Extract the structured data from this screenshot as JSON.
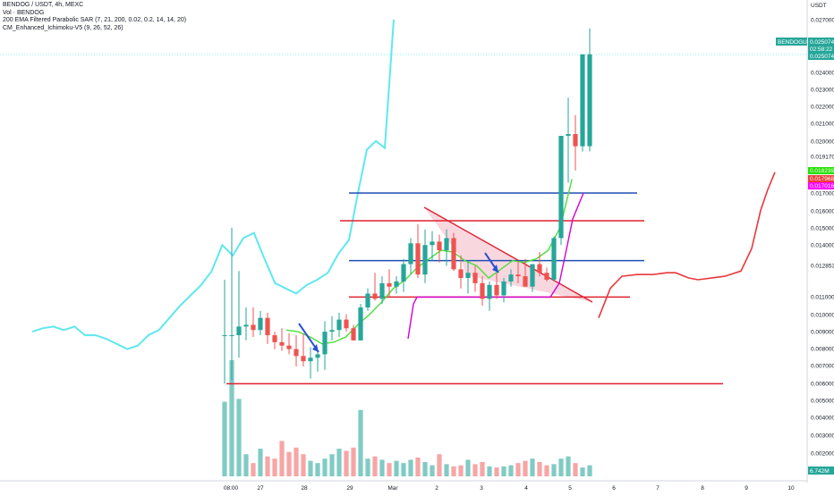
{
  "legend": {
    "title": "BENDOG / USDT, 4h, MEXC",
    "vol": "Vol · BENDOG",
    "sar": "200 EMA Filtered Parabolic SAR (7, 21, 200, 0.02, 0.2, 14, 14, 20)",
    "ichimoku": "CM_Enhanced_Ichimoku-V5 (9, 26, 52, 26)"
  },
  "axis": {
    "currency": "USDT",
    "price_ticks": [
      "0.027000",
      "0.024000",
      "0.023000",
      "0.022000",
      "0.021000",
      "0.020000",
      "0.019170",
      "0.017000",
      "0.016000",
      "0.015000",
      "0.014000",
      "0.012853",
      "0.011000",
      "0.010000",
      "0.009000",
      "0.008000",
      "0.007000",
      "0.006000",
      "0.005000",
      "0.004000",
      "0.003000",
      "0.002000"
    ],
    "time_ticks": [
      "08:00",
      "27",
      "28",
      "29",
      "Mar",
      "2",
      "3",
      "4",
      "5",
      "6",
      "7",
      "8",
      "9",
      "10"
    ]
  },
  "price_tags": {
    "symbol": "BENDOGUSDT",
    "last_price": "0.025074",
    "countdown": "02:58:22",
    "last_price_2": "0.025074",
    "green_tag": "0.018239",
    "red_tag": "0.017968",
    "magenta_tag": "0.017016",
    "volume_tag": "6.742M"
  },
  "colors": {
    "bull": "#26a69a",
    "bear": "#ef5350",
    "vol_bull": "#80cbc4",
    "vol_bear": "#f7a5a5",
    "cyan": "#5ee8ee",
    "green": "#4cdd3a",
    "magenta": "#d400d4",
    "red_line": "#e0202e",
    "blue_line": "#1f4fb3",
    "arrow": "#2a52d4",
    "triangle_fill": "#f5c6d2"
  },
  "chart_data": {
    "type": "candlestick",
    "timeframe": "4h",
    "ylim": [
      0.002,
      0.027
    ],
    "candles_ohlc": [
      [
        0.0088,
        0.012,
        0.006,
        0.0088
      ],
      [
        0.0088,
        0.015,
        0.0062,
        0.0088
      ],
      [
        0.0088,
        0.0125,
        0.0075,
        0.0093
      ],
      [
        0.0093,
        0.0104,
        0.0085,
        0.0094
      ],
      [
        0.0094,
        0.0104,
        0.0087,
        0.0091
      ],
      [
        0.0091,
        0.0102,
        0.0088,
        0.0098
      ],
      [
        0.0098,
        0.0101,
        0.0083,
        0.0088
      ],
      [
        0.0088,
        0.009,
        0.008,
        0.0084
      ],
      [
        0.0084,
        0.0092,
        0.0079,
        0.0082
      ],
      [
        0.0082,
        0.0089,
        0.0077,
        0.008
      ],
      [
        0.008,
        0.0088,
        0.007,
        0.0076
      ],
      [
        0.0076,
        0.0089,
        0.007,
        0.0073
      ],
      [
        0.0073,
        0.0081,
        0.0063,
        0.0075
      ],
      [
        0.0075,
        0.008,
        0.0067,
        0.0077
      ],
      [
        0.0077,
        0.0096,
        0.0068,
        0.009
      ],
      [
        0.009,
        0.0099,
        0.0085,
        0.0091
      ],
      [
        0.0091,
        0.0101,
        0.0087,
        0.0097
      ],
      [
        0.0097,
        0.01,
        0.009,
        0.0092
      ],
      [
        0.0092,
        0.0094,
        0.0085,
        0.0085
      ],
      [
        0.0085,
        0.0106,
        0.0085,
        0.0104
      ],
      [
        0.0104,
        0.0115,
        0.0102,
        0.0112
      ],
      [
        0.0112,
        0.0124,
        0.0108,
        0.0109
      ],
      [
        0.0109,
        0.0122,
        0.0106,
        0.0118
      ],
      [
        0.0118,
        0.0126,
        0.011,
        0.0116
      ],
      [
        0.0116,
        0.0122,
        0.0112,
        0.0119
      ],
      [
        0.0119,
        0.0132,
        0.0113,
        0.0129
      ],
      [
        0.0129,
        0.0144,
        0.0123,
        0.0141
      ],
      [
        0.0141,
        0.0152,
        0.0121,
        0.0123
      ],
      [
        0.0123,
        0.0149,
        0.0118,
        0.014
      ],
      [
        0.014,
        0.0148,
        0.0131,
        0.0142
      ],
      [
        0.0142,
        0.0146,
        0.013,
        0.0137
      ],
      [
        0.0137,
        0.0149,
        0.0128,
        0.0144
      ],
      [
        0.0144,
        0.0147,
        0.0125,
        0.0126
      ],
      [
        0.0126,
        0.0134,
        0.0115,
        0.0121
      ],
      [
        0.0121,
        0.0131,
        0.0112,
        0.0124
      ],
      [
        0.0124,
        0.0128,
        0.0113,
        0.0118
      ],
      [
        0.0118,
        0.0122,
        0.0105,
        0.0109
      ],
      [
        0.0109,
        0.0119,
        0.0102,
        0.0117
      ],
      [
        0.0117,
        0.0124,
        0.0109,
        0.0111
      ],
      [
        0.0111,
        0.0121,
        0.0107,
        0.0119
      ],
      [
        0.0119,
        0.0126,
        0.0116,
        0.0123
      ],
      [
        0.0123,
        0.0131,
        0.0118,
        0.0122
      ],
      [
        0.0122,
        0.0132,
        0.0117,
        0.0116
      ],
      [
        0.0116,
        0.0128,
        0.0113,
        0.0129
      ],
      [
        0.0129,
        0.0136,
        0.0122,
        0.0124
      ],
      [
        0.0124,
        0.0127,
        0.0119,
        0.012
      ],
      [
        0.012,
        0.0145,
        0.0119,
        0.0144
      ],
      [
        0.0144,
        0.0203,
        0.014,
        0.0203
      ],
      [
        0.0203,
        0.0225,
        0.0176,
        0.0204
      ],
      [
        0.0204,
        0.0215,
        0.0183,
        0.0197
      ],
      [
        0.0197,
        0.0238,
        0.0194,
        0.025
      ],
      [
        0.0197,
        0.0265,
        0.0194,
        0.025
      ]
    ],
    "volume_millions": [
      6.742,
      10.5,
      7.0,
      2.0,
      1.2,
      2.5,
      1.8,
      1.6,
      3.2,
      2.2,
      2.6,
      2.0,
      1.4,
      1.2,
      1.6,
      2.0,
      2.5,
      2.3,
      2.6,
      6.0,
      1.6,
      1.8,
      1.5,
      1.2,
      1.4,
      1.2,
      1.5,
      1.7,
      1.3,
      1.0,
      2.0,
      1.1,
      0.9,
      1.0,
      1.5,
      1.1,
      1.3,
      0.9,
      0.8,
      0.9,
      1.0,
      1.2,
      1.4,
      1.6,
      1.3,
      1.0,
      1.1,
      1.6,
      1.8,
      1.2,
      0.8,
      1.0
    ],
    "cyan_line": [
      0.009,
      0.0092,
      0.0093,
      0.0091,
      0.0093,
      0.0088,
      0.0088,
      0.0086,
      0.0083,
      0.008,
      0.0082,
      0.0088,
      0.0091,
      0.0098,
      0.0105,
      0.0111,
      0.0117,
      0.0125,
      0.014,
      0.0134,
      0.0144,
      0.0147,
      0.0132,
      0.0118,
      0.0115,
      0.0112,
      0.0117,
      0.012,
      0.0124,
      0.0135,
      0.0143,
      0.017,
      0.0195,
      0.02,
      0.0196,
      0.027
    ],
    "green_line": [
      0.0091,
      0.009,
      0.0087,
      0.0083,
      0.0084,
      0.0087,
      0.0094,
      0.01,
      0.0107,
      0.0115,
      0.012,
      0.0127,
      0.0132,
      0.0137,
      0.0136,
      0.0131,
      0.0128,
      0.0121,
      0.0126,
      0.0131,
      0.013,
      0.0132,
      0.0137,
      0.015,
      0.0178
    ],
    "magenta_line": [
      0.0086,
      0.0106,
      0.011,
      0.011,
      0.011,
      0.011,
      0.011,
      0.011,
      0.0118,
      0.0135,
      0.0155,
      0.017
    ],
    "red_cloud_line": [
      0.0098,
      0.0115,
      0.0122,
      0.0123,
      0.0123,
      0.0124,
      0.0124,
      0.0121,
      0.012,
      0.0121,
      0.0122,
      0.0125,
      0.0138,
      0.016,
      0.0172,
      0.0182
    ],
    "horizontal_levels": {
      "blue": [
        0.017,
        0.0131
      ],
      "red": [
        0.0154,
        0.011,
        0.006
      ]
    }
  }
}
